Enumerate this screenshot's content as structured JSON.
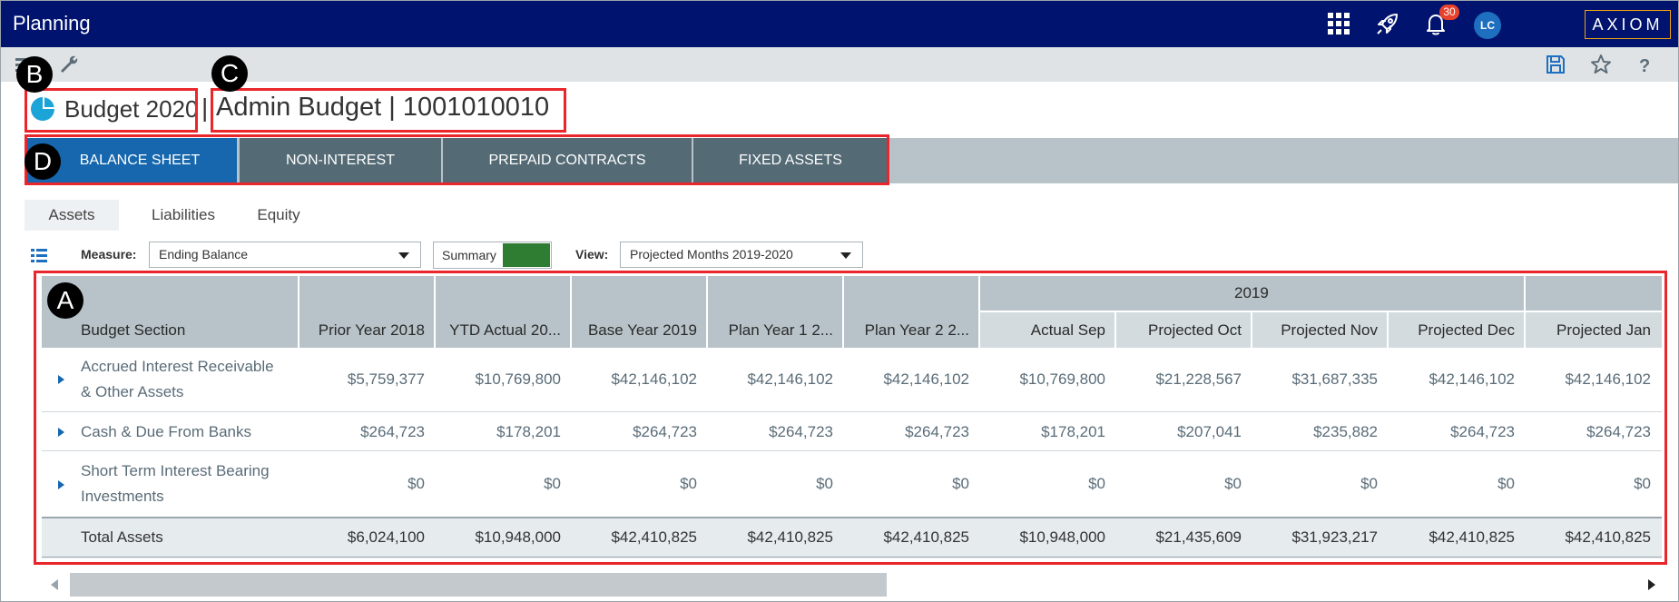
{
  "app": {
    "title": "Planning",
    "notification_count": "30",
    "user_initials": "LC",
    "brand": "AXIOM"
  },
  "title": {
    "plan_name": "Budget 2020",
    "separator": "|",
    "budget_name": "Admin Budget | 1001010010"
  },
  "main_tabs": [
    {
      "label": "BALANCE SHEET",
      "active": true
    },
    {
      "label": "NON-INTEREST",
      "active": false
    },
    {
      "label": "PREPAID CONTRACTS",
      "active": false
    },
    {
      "label": "FIXED ASSETS",
      "active": false
    }
  ],
  "sub_tabs": [
    {
      "label": "Assets",
      "active": true
    },
    {
      "label": "Liabilities",
      "active": false
    },
    {
      "label": "Equity",
      "active": false
    }
  ],
  "filters": {
    "measure_label": "Measure:",
    "measure_value": "Ending Balance",
    "summary_label": "Summary",
    "view_label": "View:",
    "view_value": "Projected Months 2019-2020"
  },
  "table": {
    "group_header": "2019",
    "section_header": "Budget Section",
    "columns": [
      "Prior Year 2018",
      "YTD Actual 20...",
      "Base Year 2019",
      "Plan Year 1 2...",
      "Plan Year 2 2...",
      "Actual Sep",
      "Projected Oct",
      "Projected Nov",
      "Projected Dec",
      "Projected Jan"
    ],
    "rows": [
      {
        "label_line1": "Accrued Interest Receivable",
        "label_line2": "& Other Assets",
        "values": [
          "$5,759,377",
          "$10,769,800",
          "$42,146,102",
          "$42,146,102",
          "$42,146,102",
          "$10,769,800",
          "$21,228,567",
          "$31,687,335",
          "$42,146,102",
          "$42,146,102"
        ]
      },
      {
        "label_line1": "Cash & Due From Banks",
        "label_line2": "",
        "values": [
          "$264,723",
          "$178,201",
          "$264,723",
          "$264,723",
          "$264,723",
          "$178,201",
          "$207,041",
          "$235,882",
          "$264,723",
          "$264,723"
        ]
      },
      {
        "label_line1": "Short Term Interest Bearing",
        "label_line2": "Investments",
        "values": [
          "$0",
          "$0",
          "$0",
          "$0",
          "$0",
          "$0",
          "$0",
          "$0",
          "$0",
          "$0"
        ]
      }
    ],
    "total": {
      "label": "Total Assets",
      "values": [
        "$6,024,100",
        "$10,948,000",
        "$42,410,825",
        "$42,410,825",
        "$42,410,825",
        "$10,948,000",
        "$21,435,609",
        "$31,923,217",
        "$42,410,825",
        "$42,410,825"
      ]
    }
  },
  "markers": {
    "a": "A",
    "b": "B",
    "c": "C",
    "d": "D"
  },
  "colors": {
    "topbar": "#00136e",
    "active_tab": "#1667ae",
    "tab": "#546a75",
    "annotation": "#e8262c",
    "toggle": "#2e7d32"
  }
}
